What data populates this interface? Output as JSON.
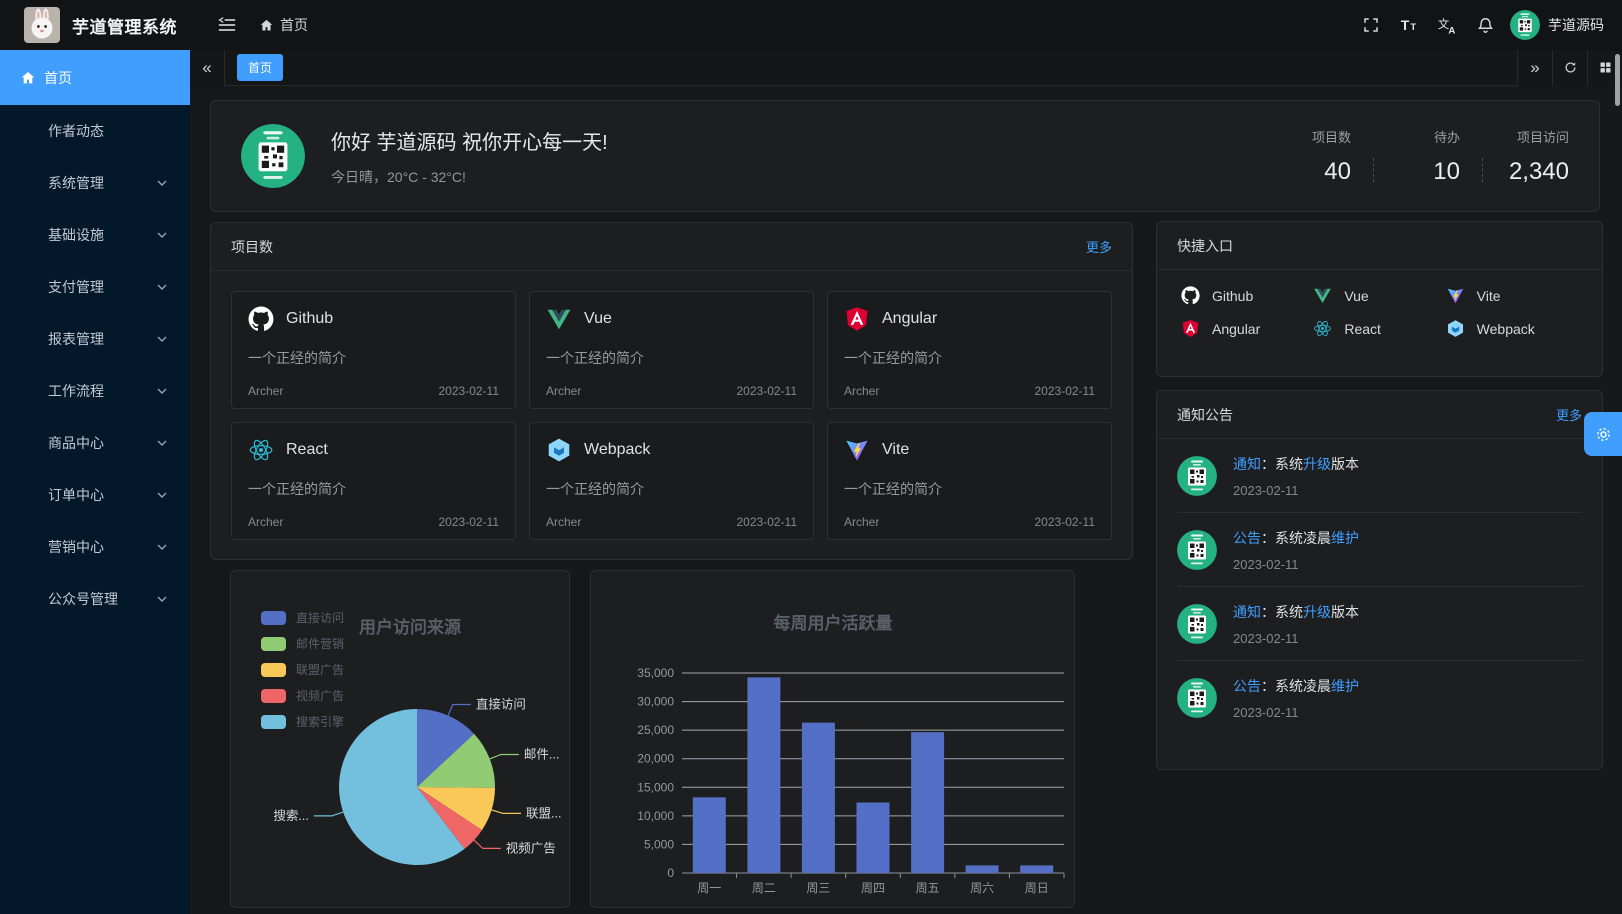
{
  "app": {
    "title": "芋道管理系统",
    "user_name": "芋道源码"
  },
  "header": {
    "breadcrumb_home": "首页",
    "icons": [
      "menu-fold-icon",
      "fullscreen-icon",
      "font-size-icon",
      "language-icon",
      "bell-icon"
    ]
  },
  "tabs": {
    "active": "首页"
  },
  "sidebar": {
    "items": [
      {
        "label": "首页",
        "icon": "home",
        "active": true,
        "expandable": false
      },
      {
        "label": "作者动态",
        "active": false,
        "expandable": false
      },
      {
        "label": "系统管理",
        "active": false,
        "expandable": true
      },
      {
        "label": "基础设施",
        "active": false,
        "expandable": true
      },
      {
        "label": "支付管理",
        "active": false,
        "expandable": true
      },
      {
        "label": "报表管理",
        "active": false,
        "expandable": true
      },
      {
        "label": "工作流程",
        "active": false,
        "expandable": true
      },
      {
        "label": "商品中心",
        "active": false,
        "expandable": true
      },
      {
        "label": "订单中心",
        "active": false,
        "expandable": true
      },
      {
        "label": "营销中心",
        "active": false,
        "expandable": true
      },
      {
        "label": "公众号管理",
        "active": false,
        "expandable": true
      }
    ]
  },
  "greeting": {
    "title": "你好 芋道源码 祝你开心每一天!",
    "subtitle": "今日晴，20°C - 32°C!",
    "stats": [
      {
        "label": "项目数",
        "value": "40"
      },
      {
        "label": "待办",
        "value": "10"
      },
      {
        "label": "项目访问",
        "value": "2,340"
      }
    ]
  },
  "projects": {
    "title": "项目数",
    "more_label": "更多",
    "items": [
      {
        "name": "Github",
        "icon": "github",
        "desc": "一个正经的简介",
        "author": "Archer",
        "date": "2023-02-11"
      },
      {
        "name": "Vue",
        "icon": "vue",
        "desc": "一个正经的简介",
        "author": "Archer",
        "date": "2023-02-11"
      },
      {
        "name": "Angular",
        "icon": "angular",
        "desc": "一个正经的简介",
        "author": "Archer",
        "date": "2023-02-11"
      },
      {
        "name": "React",
        "icon": "react",
        "desc": "一个正经的简介",
        "author": "Archer",
        "date": "2023-02-11"
      },
      {
        "name": "Webpack",
        "icon": "webpack",
        "desc": "一个正经的简介",
        "author": "Archer",
        "date": "2023-02-11"
      },
      {
        "name": "Vite",
        "icon": "vite",
        "desc": "一个正经的简介",
        "author": "Archer",
        "date": "2023-02-11"
      }
    ]
  },
  "shortcuts": {
    "title": "快捷入口",
    "items": [
      {
        "name": "Github",
        "icon": "github"
      },
      {
        "name": "Vue",
        "icon": "vue"
      },
      {
        "name": "Vite",
        "icon": "vite"
      },
      {
        "name": "Angular",
        "icon": "angular"
      },
      {
        "name": "React",
        "icon": "react"
      },
      {
        "name": "Webpack",
        "icon": "webpack"
      }
    ]
  },
  "notices": {
    "title": "通知公告",
    "more_label": "更多",
    "items": [
      {
        "segments": [
          {
            "text": "通知",
            "highlight": true
          },
          {
            "text": "：系统",
            "highlight": false
          },
          {
            "text": "升级",
            "highlight": true
          },
          {
            "text": "版本",
            "highlight": false
          }
        ],
        "date": "2023-02-11"
      },
      {
        "segments": [
          {
            "text": "公告",
            "highlight": true
          },
          {
            "text": "：系统凌晨",
            "highlight": false
          },
          {
            "text": "维护",
            "highlight": true
          }
        ],
        "date": "2023-02-11"
      },
      {
        "segments": [
          {
            "text": "通知",
            "highlight": true
          },
          {
            "text": "：系统",
            "highlight": false
          },
          {
            "text": "升级",
            "highlight": true
          },
          {
            "text": "版本",
            "highlight": false
          }
        ],
        "date": "2023-02-11"
      },
      {
        "segments": [
          {
            "text": "公告",
            "highlight": true
          },
          {
            "text": "：系统凌晨",
            "highlight": false
          },
          {
            "text": "维护",
            "highlight": true
          }
        ],
        "date": "2023-02-11"
      }
    ]
  },
  "colors": {
    "primary": "#409eff",
    "sidebar_bg": "#04182c",
    "card_bg": "#1d1e20",
    "avatar_green": "#25b283"
  },
  "chart_data": [
    {
      "type": "pie",
      "title": "用户访问来源",
      "legend_position": "left",
      "legend": [
        "直接访问",
        "邮件营销",
        "联盟广告",
        "视频广告",
        "搜索引擎"
      ],
      "series": [
        {
          "name": "直接访问",
          "value": 335,
          "label": "直接访问",
          "color": "#5470c6"
        },
        {
          "name": "邮件营销",
          "value": 310,
          "label": "邮件...",
          "color": "#91cc75"
        },
        {
          "name": "联盟广告",
          "value": 234,
          "label": "联盟...",
          "color": "#fac858"
        },
        {
          "name": "视频广告",
          "value": 135,
          "label": "视频广告",
          "color": "#ee6666"
        },
        {
          "name": "搜索引擎",
          "value": 1548,
          "label": "搜索...",
          "color": "#73c0de"
        }
      ]
    },
    {
      "type": "bar",
      "title": "每周用户活跃量",
      "categories": [
        "周一",
        "周二",
        "周三",
        "周四",
        "周五",
        "周六",
        "周日"
      ],
      "values": [
        13253,
        34235,
        26321,
        12340,
        24643,
        1322,
        1324
      ],
      "ylim": [
        0,
        35000
      ],
      "ytick_step": 5000,
      "bar_color": "#5470c6",
      "grid": true,
      "legend_position": "none"
    }
  ]
}
